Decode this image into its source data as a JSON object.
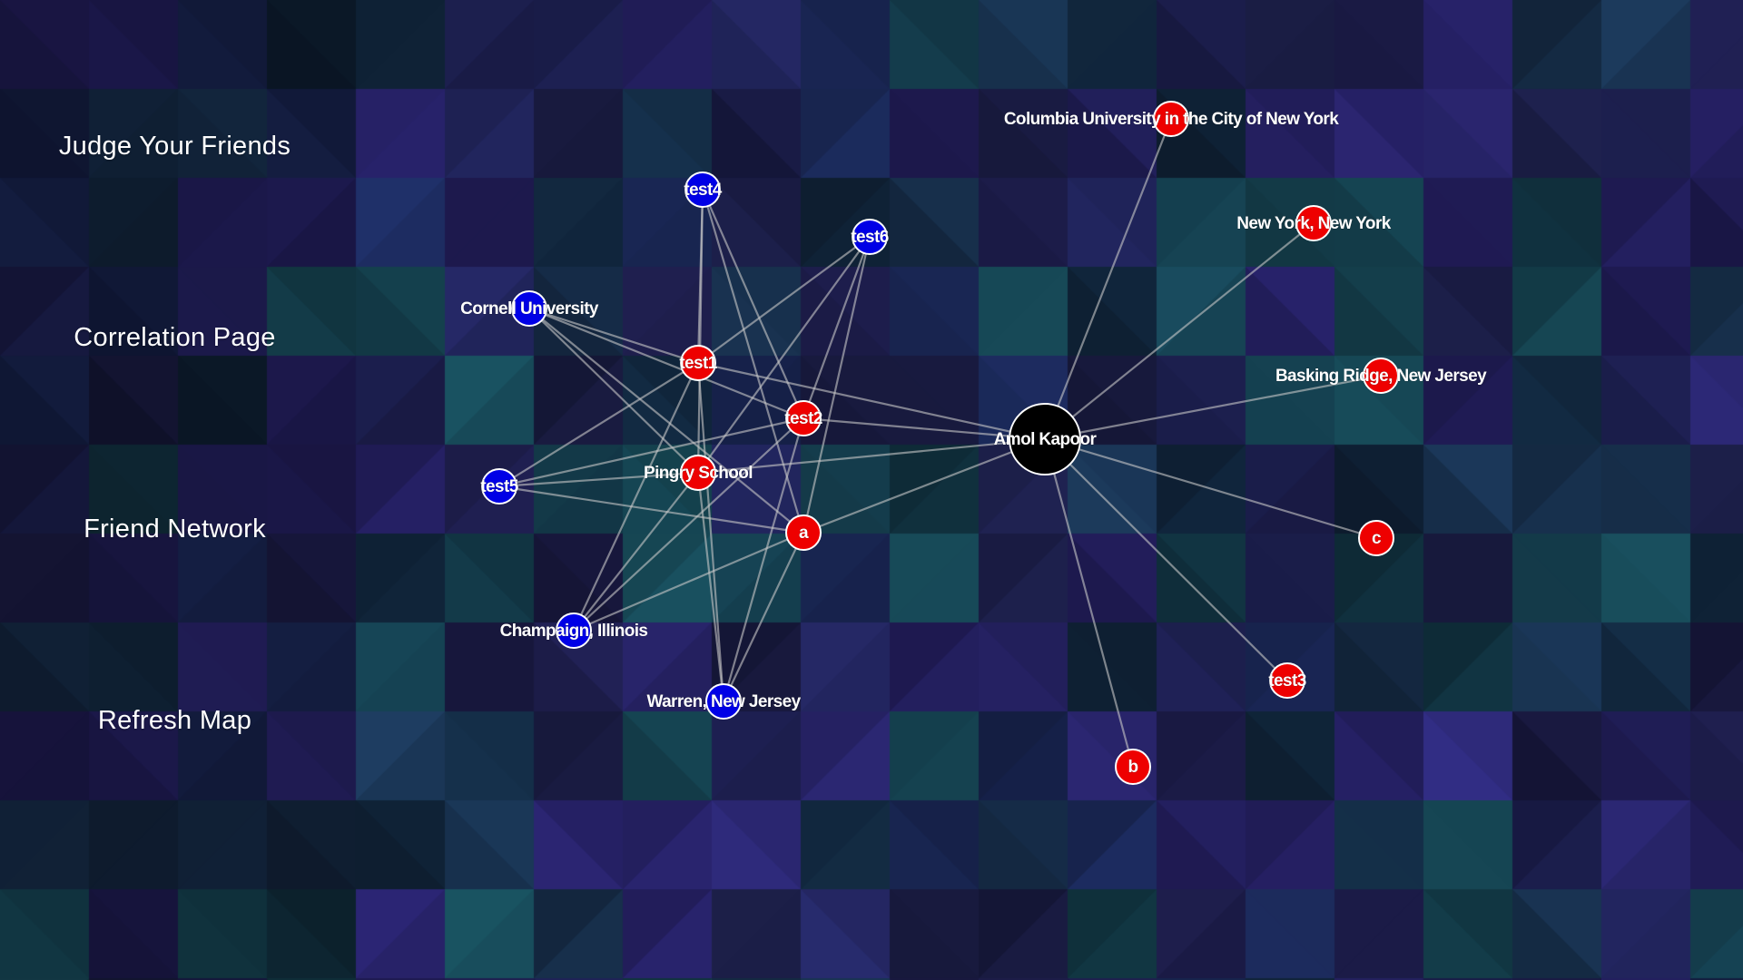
{
  "nav": {
    "items": [
      {
        "id": "judge",
        "label": "Judge Your Friends"
      },
      {
        "id": "correlation",
        "label": "Correlation Page"
      },
      {
        "id": "network",
        "label": "Friend Network"
      },
      {
        "id": "refresh",
        "label": "Refresh Map"
      }
    ]
  },
  "colors": {
    "center": "#000000",
    "red": "#ee0000",
    "blue": "#0000e6",
    "edge": "#c8c8c8"
  },
  "graph": {
    "nodes": [
      {
        "id": "amol",
        "label": "Amol Kapoor",
        "group": "center"
      },
      {
        "id": "columbia",
        "label": "Columbia University in the City of New York",
        "group": "red"
      },
      {
        "id": "nyny",
        "label": "New York, New York",
        "group": "red"
      },
      {
        "id": "basking",
        "label": "Basking Ridge, New Jersey",
        "group": "red"
      },
      {
        "id": "c",
        "label": "c",
        "group": "red"
      },
      {
        "id": "test3",
        "label": "test3",
        "group": "red"
      },
      {
        "id": "b",
        "label": "b",
        "group": "red"
      },
      {
        "id": "a",
        "label": "a",
        "group": "red"
      },
      {
        "id": "pingry",
        "label": "Pingry School",
        "group": "red"
      },
      {
        "id": "test2",
        "label": "test2",
        "group": "red"
      },
      {
        "id": "test1",
        "label": "test1",
        "group": "red"
      },
      {
        "id": "test4",
        "label": "test4",
        "group": "blue"
      },
      {
        "id": "test6",
        "label": "test6",
        "group": "blue"
      },
      {
        "id": "cornell",
        "label": "Cornell University",
        "group": "blue"
      },
      {
        "id": "test5",
        "label": "test5",
        "group": "blue"
      },
      {
        "id": "champaign",
        "label": "Champaign, Illinois",
        "group": "blue"
      },
      {
        "id": "warren",
        "label": "Warren, New Jersey",
        "group": "blue"
      }
    ],
    "edges": [
      [
        "amol",
        "columbia"
      ],
      [
        "amol",
        "nyny"
      ],
      [
        "amol",
        "basking"
      ],
      [
        "amol",
        "c"
      ],
      [
        "amol",
        "test3"
      ],
      [
        "amol",
        "b"
      ],
      [
        "amol",
        "a"
      ],
      [
        "amol",
        "pingry"
      ],
      [
        "amol",
        "test2"
      ],
      [
        "amol",
        "test1"
      ],
      [
        "test4",
        "test1"
      ],
      [
        "test4",
        "test2"
      ],
      [
        "test4",
        "a"
      ],
      [
        "test4",
        "pingry"
      ],
      [
        "test6",
        "test1"
      ],
      [
        "test6",
        "test2"
      ],
      [
        "test6",
        "a"
      ],
      [
        "test6",
        "pingry"
      ],
      [
        "cornell",
        "test1"
      ],
      [
        "cornell",
        "test2"
      ],
      [
        "cornell",
        "a"
      ],
      [
        "cornell",
        "pingry"
      ],
      [
        "test5",
        "test1"
      ],
      [
        "test5",
        "test2"
      ],
      [
        "test5",
        "a"
      ],
      [
        "test5",
        "pingry"
      ],
      [
        "champaign",
        "test1"
      ],
      [
        "champaign",
        "test2"
      ],
      [
        "champaign",
        "a"
      ],
      [
        "champaign",
        "pingry"
      ],
      [
        "warren",
        "test1"
      ],
      [
        "warren",
        "test2"
      ],
      [
        "warren",
        "a"
      ],
      [
        "warren",
        "pingry"
      ]
    ]
  }
}
